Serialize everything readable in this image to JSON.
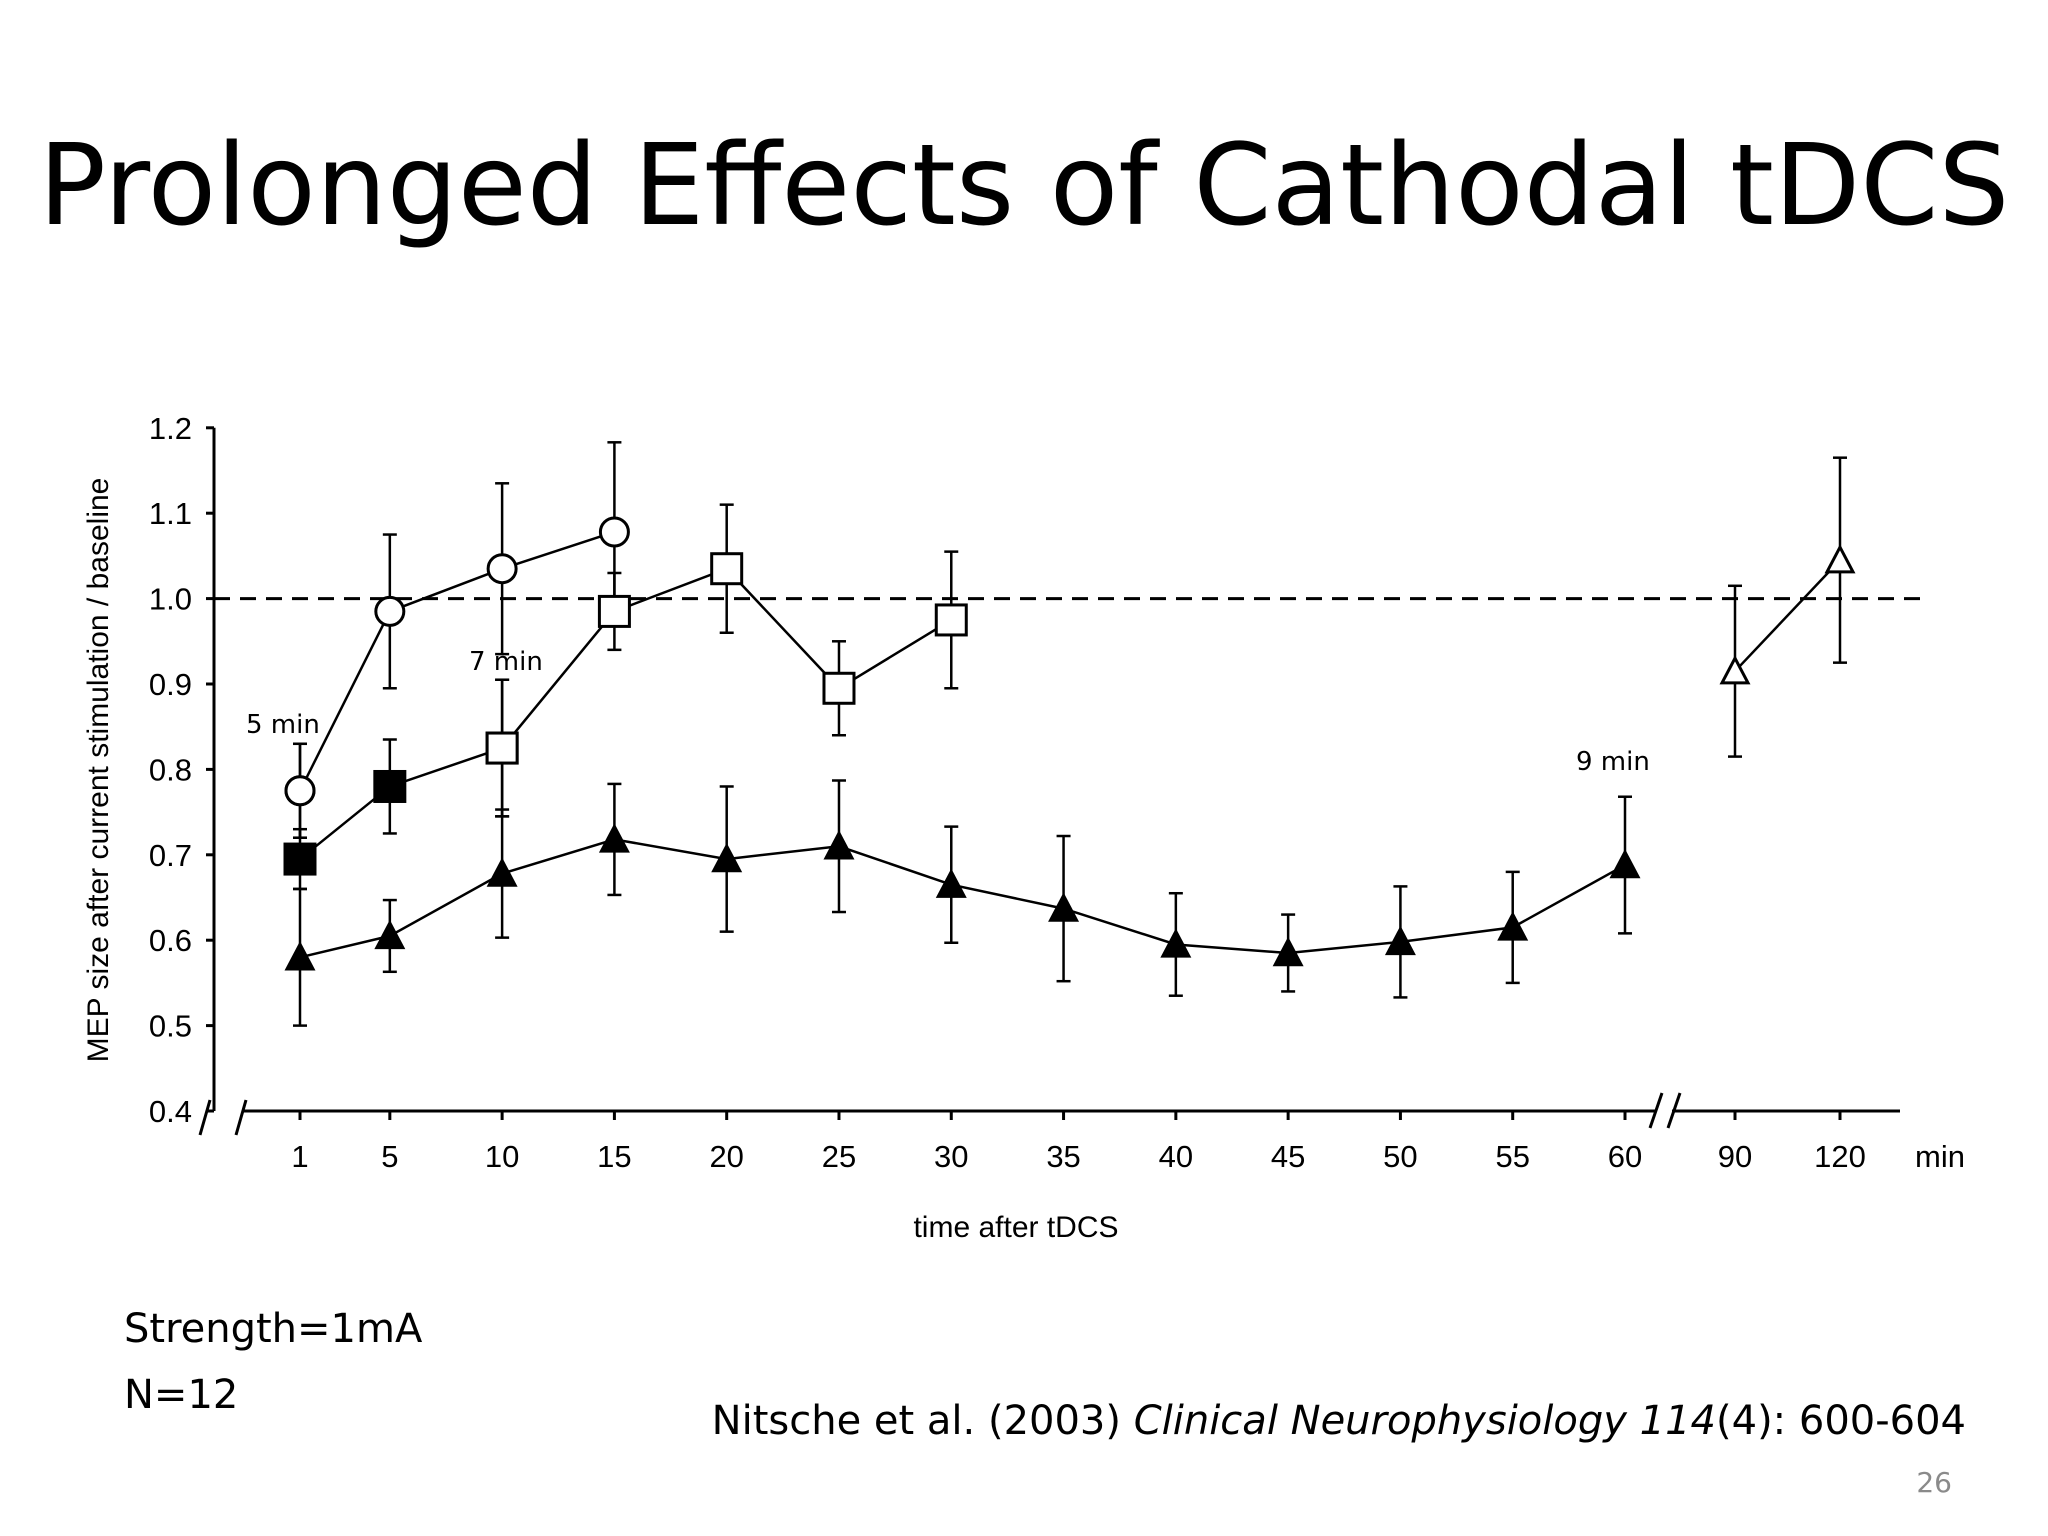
{
  "slide": {
    "title": "Prolonged Effects of Cathodal tDCS",
    "notes": [
      "Strength=1mA",
      "N=12"
    ],
    "citation": {
      "authors": "Nitsche et al. (2003) ",
      "journal": "Clinical Neurophysiology",
      "volume": "114",
      "pages": "(4): 600-604"
    },
    "slide_number": "26"
  },
  "chart_data": {
    "type": "line",
    "xlabel": "time after tDCS",
    "ylabel": "MEP size after current stimulation / baseline",
    "x_unit": "min",
    "x_ticks": [
      "1",
      "5",
      "10",
      "15",
      "20",
      "25",
      "30",
      "35",
      "40",
      "45",
      "50",
      "55",
      "60",
      "90",
      "120"
    ],
    "y_ticks": [
      "0.4",
      "0.5",
      "0.6",
      "0.7",
      "0.8",
      "0.9",
      "1.0",
      "1.1",
      "1.2"
    ],
    "ylim": [
      0.4,
      1.2
    ],
    "baseline": 1.0,
    "axis_break": "between 60 and 90",
    "series": [
      {
        "marker": "filled-circle",
        "annotation": "5 min",
        "x": [
          1
        ],
        "y": [
          0.775
        ],
        "err": [
          0.055
        ]
      },
      {
        "marker": "open-circle",
        "annotation": "5 min",
        "x": [
          1,
          5,
          10,
          15
        ],
        "y": [
          0.775,
          0.985,
          1.035,
          1.078
        ],
        "err": [
          0.055,
          0.09,
          0.1,
          0.105
        ]
      },
      {
        "marker": "filled-square",
        "annotation": "7 min",
        "x": [
          1,
          5,
          10
        ],
        "y": [
          0.695,
          0.78,
          0.825
        ],
        "err": [
          0.035,
          0.055,
          0.08
        ]
      },
      {
        "marker": "open-square",
        "annotation": "7 min",
        "x": [
          10,
          15,
          20,
          25,
          30
        ],
        "y": [
          0.825,
          0.985,
          1.035,
          0.895,
          0.975
        ],
        "err": [
          0.08,
          0.045,
          0.075,
          0.055,
          0.08
        ]
      },
      {
        "marker": "filled-triangle",
        "annotation": "9 min",
        "x": [
          1,
          5,
          10,
          15,
          20,
          25,
          30,
          35,
          40,
          45,
          50,
          55,
          60
        ],
        "y": [
          0.58,
          0.605,
          0.678,
          0.718,
          0.695,
          0.71,
          0.665,
          0.637,
          0.595,
          0.585,
          0.598,
          0.615,
          0.688
        ],
        "err": [
          0.08,
          0.042,
          0.075,
          0.065,
          0.085,
          0.077,
          0.068,
          0.085,
          0.06,
          0.045,
          0.065,
          0.065,
          0.08
        ]
      },
      {
        "marker": "open-triangle",
        "annotation": "9 min",
        "x": [
          90,
          120
        ],
        "y": [
          0.915,
          1.045
        ],
        "err": [
          0.1,
          0.12
        ]
      }
    ],
    "annotations": [
      "5 min",
      "7 min",
      "9 min"
    ]
  }
}
